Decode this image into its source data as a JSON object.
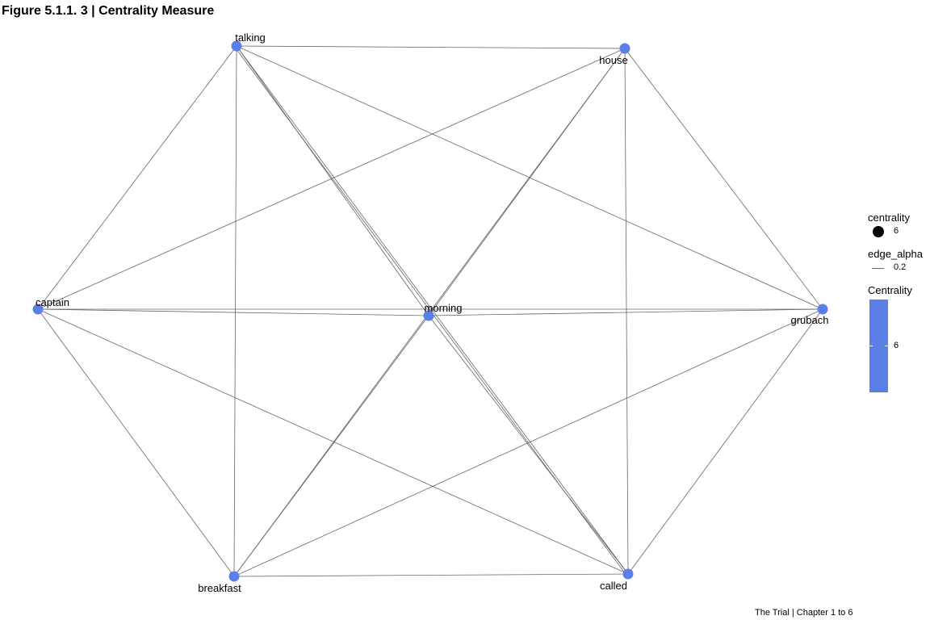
{
  "title": "Figure 5.1.1. 3  | Centrality Measure",
  "caption": "The Trial | Chapter 1 to 6",
  "colors": {
    "node": "#5a7fe6",
    "edge": "#666666"
  },
  "graph": {
    "nodes": [
      {
        "id": "talking",
        "label": "talking"
      },
      {
        "id": "house",
        "label": "house"
      },
      {
        "id": "captain",
        "label": "captain"
      },
      {
        "id": "morning",
        "label": "morning"
      },
      {
        "id": "grubach",
        "label": "grubach"
      },
      {
        "id": "breakfast",
        "label": "breakfast"
      },
      {
        "id": "called",
        "label": "called"
      }
    ],
    "edges": [
      [
        "talking",
        "house"
      ],
      [
        "talking",
        "captain"
      ],
      [
        "talking",
        "morning"
      ],
      [
        "talking",
        "grubach"
      ],
      [
        "talking",
        "breakfast"
      ],
      [
        "talking",
        "called"
      ],
      [
        "talking",
        "called"
      ],
      [
        "house",
        "captain"
      ],
      [
        "house",
        "morning"
      ],
      [
        "house",
        "grubach"
      ],
      [
        "house",
        "breakfast"
      ],
      [
        "house",
        "called"
      ],
      [
        "captain",
        "morning"
      ],
      [
        "captain",
        "grubach"
      ],
      [
        "captain",
        "breakfast"
      ],
      [
        "captain",
        "called"
      ],
      [
        "morning",
        "grubach"
      ],
      [
        "morning",
        "breakfast"
      ],
      [
        "morning",
        "called"
      ],
      [
        "grubach",
        "breakfast"
      ],
      [
        "grubach",
        "called"
      ],
      [
        "breakfast",
        "called"
      ]
    ]
  },
  "legend": {
    "centrality": {
      "title": "centrality",
      "value": "6"
    },
    "edge_alpha": {
      "title": "edge_alpha",
      "value": "0.2"
    },
    "colorbar": {
      "title": "Centrality",
      "value": "6",
      "color": "#5a7fe6"
    }
  }
}
